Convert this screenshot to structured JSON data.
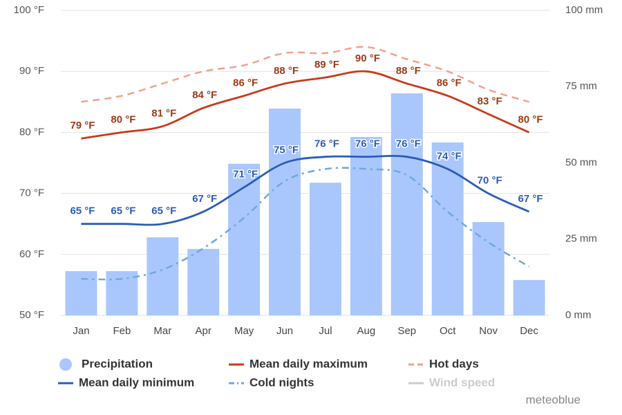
{
  "chart_data": {
    "type": "combo",
    "categories": [
      "Jan",
      "Feb",
      "Mar",
      "Apr",
      "May",
      "Jun",
      "Jul",
      "Aug",
      "Sep",
      "Oct",
      "Nov",
      "Dec"
    ],
    "ylim": [
      50,
      100
    ],
    "yticks": [
      {
        "value": 50,
        "label": "50 °F"
      },
      {
        "value": 60,
        "label": "60 °F"
      },
      {
        "value": 70,
        "label": "70 °F"
      },
      {
        "value": 80,
        "label": "80 °F"
      },
      {
        "value": 90,
        "label": "90 °F"
      },
      {
        "value": 100,
        "label": "100 °F"
      }
    ],
    "y2lim": [
      0,
      100
    ],
    "y2ticks": [
      {
        "value": 0,
        "label": "0 mm"
      },
      {
        "value": 25,
        "label": "25 mm"
      },
      {
        "value": 50,
        "label": "50 mm"
      },
      {
        "value": 75,
        "label": "75 mm"
      },
      {
        "value": 100,
        "label": "100 mm"
      }
    ],
    "grid": true,
    "credit": "meteoblue",
    "series": [
      {
        "name": "Precipitation",
        "type": "bar",
        "axis": "y2",
        "color": "#a9c7fc",
        "values": [
          14.5,
          14.5,
          25.6,
          21.8,
          49.7,
          67.8,
          43.5,
          58.5,
          72.8,
          56.7,
          30.6,
          11.6
        ]
      },
      {
        "name": "Mean daily maximum",
        "type": "line",
        "color": "#c8391a",
        "label_color": "#9b3b16",
        "values": [
          79,
          80,
          81,
          84,
          86,
          88,
          89,
          90,
          88,
          86,
          83,
          80
        ],
        "value_labels": [
          "79 °F",
          "80 °F",
          "81 °F",
          "84 °F",
          "86 °F",
          "88 °F",
          "89 °F",
          "90 °F",
          "88 °F",
          "86 °F",
          "83 °F",
          "80 °F"
        ]
      },
      {
        "name": "Hot days",
        "type": "line",
        "dash": "dash",
        "color": "#f2a18b",
        "values": [
          85,
          86,
          88,
          90,
          91,
          93,
          93,
          94,
          92,
          90,
          87,
          85
        ]
      },
      {
        "name": "Mean daily minimum",
        "type": "line",
        "color": "#2a5cb8",
        "label_color": "#2c5bb5",
        "values": [
          65,
          65,
          65,
          67,
          71,
          75,
          76,
          76,
          76,
          74,
          70,
          67
        ],
        "value_labels": [
          "65 °F",
          "65 °F",
          "65 °F",
          "67 °F",
          "71 °F",
          "75 °F",
          "76 °F",
          "76 °F",
          "76 °F",
          "74 °F",
          "70 °F",
          "67 °F"
        ]
      },
      {
        "name": "Cold nights",
        "type": "line",
        "dash": "dashdot",
        "color": "#6ea8e0",
        "values": [
          56,
          56,
          57.5,
          61,
          66,
          72,
          74,
          74,
          73,
          67,
          62,
          58
        ]
      },
      {
        "name": "Wind speed",
        "type": "line",
        "color": "#cccccc",
        "visible": false,
        "values": [
          null,
          null,
          null,
          null,
          null,
          null,
          null,
          null,
          null,
          null,
          null,
          null
        ]
      }
    ]
  }
}
